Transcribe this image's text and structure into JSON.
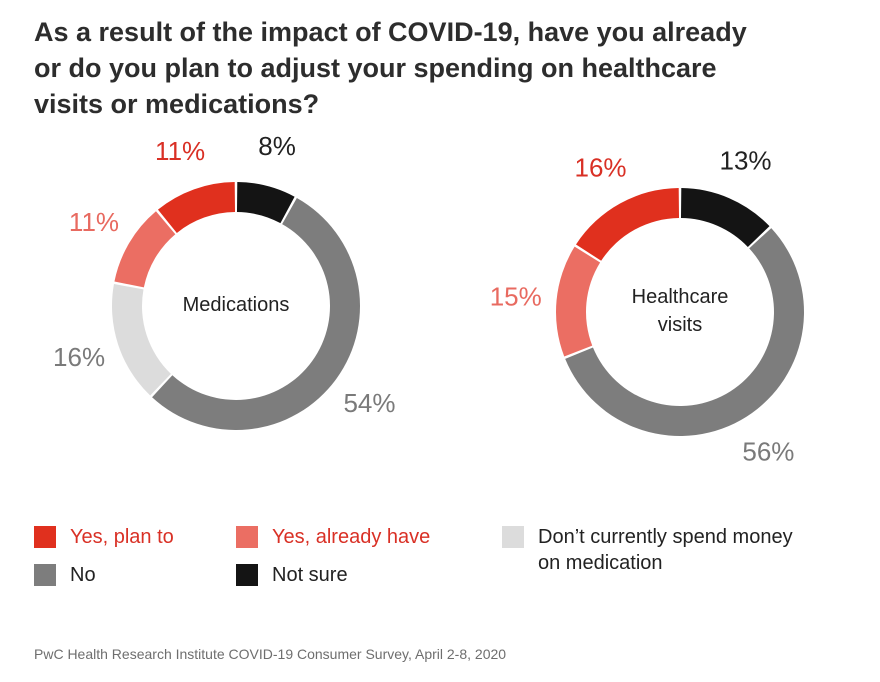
{
  "title_lines": [
    "As a result of the impact of COVID-19, have you already",
    "or do you plan to adjust your spending on healthcare",
    "visits or medications?"
  ],
  "colors": {
    "yes_plan": "#e0301e",
    "yes_already": "#eb6e63",
    "dont_spend": "#dcdcdc",
    "no": "#7d7d7d",
    "not_sure": "#141414",
    "text_red": "#d93025",
    "text_pink": "#e86a60",
    "text_grey": "#7a7a7a",
    "text_dark": "#222222"
  },
  "chart_data": [
    {
      "type": "pie",
      "donut": true,
      "center_label": [
        "Medications"
      ],
      "slices": [
        {
          "key": "not_sure",
          "value": 8,
          "label": "8%"
        },
        {
          "key": "no",
          "value": 54,
          "label": "54%"
        },
        {
          "key": "dont_spend",
          "value": 16,
          "label": "16%"
        },
        {
          "key": "yes_already",
          "value": 11,
          "label": "11%"
        },
        {
          "key": "yes_plan",
          "value": 11,
          "label": "11%"
        }
      ]
    },
    {
      "type": "pie",
      "donut": true,
      "center_label": [
        "Healthcare",
        "visits"
      ],
      "slices": [
        {
          "key": "not_sure",
          "value": 13,
          "label": "13%"
        },
        {
          "key": "no",
          "value": 56,
          "label": "56%"
        },
        {
          "key": "yes_already",
          "value": 15,
          "label": "15%"
        },
        {
          "key": "yes_plan",
          "value": 16,
          "label": "16%"
        }
      ]
    }
  ],
  "legend": {
    "yes_plan": "Yes, plan to",
    "yes_already": "Yes, already have",
    "dont_spend_lines": [
      "Don’t currently spend money",
      "on medication"
    ],
    "no": "No",
    "not_sure": "Not sure"
  },
  "source": "PwC Health Research Institute COVID-19 Consumer Survey, April 2-8, 2020"
}
